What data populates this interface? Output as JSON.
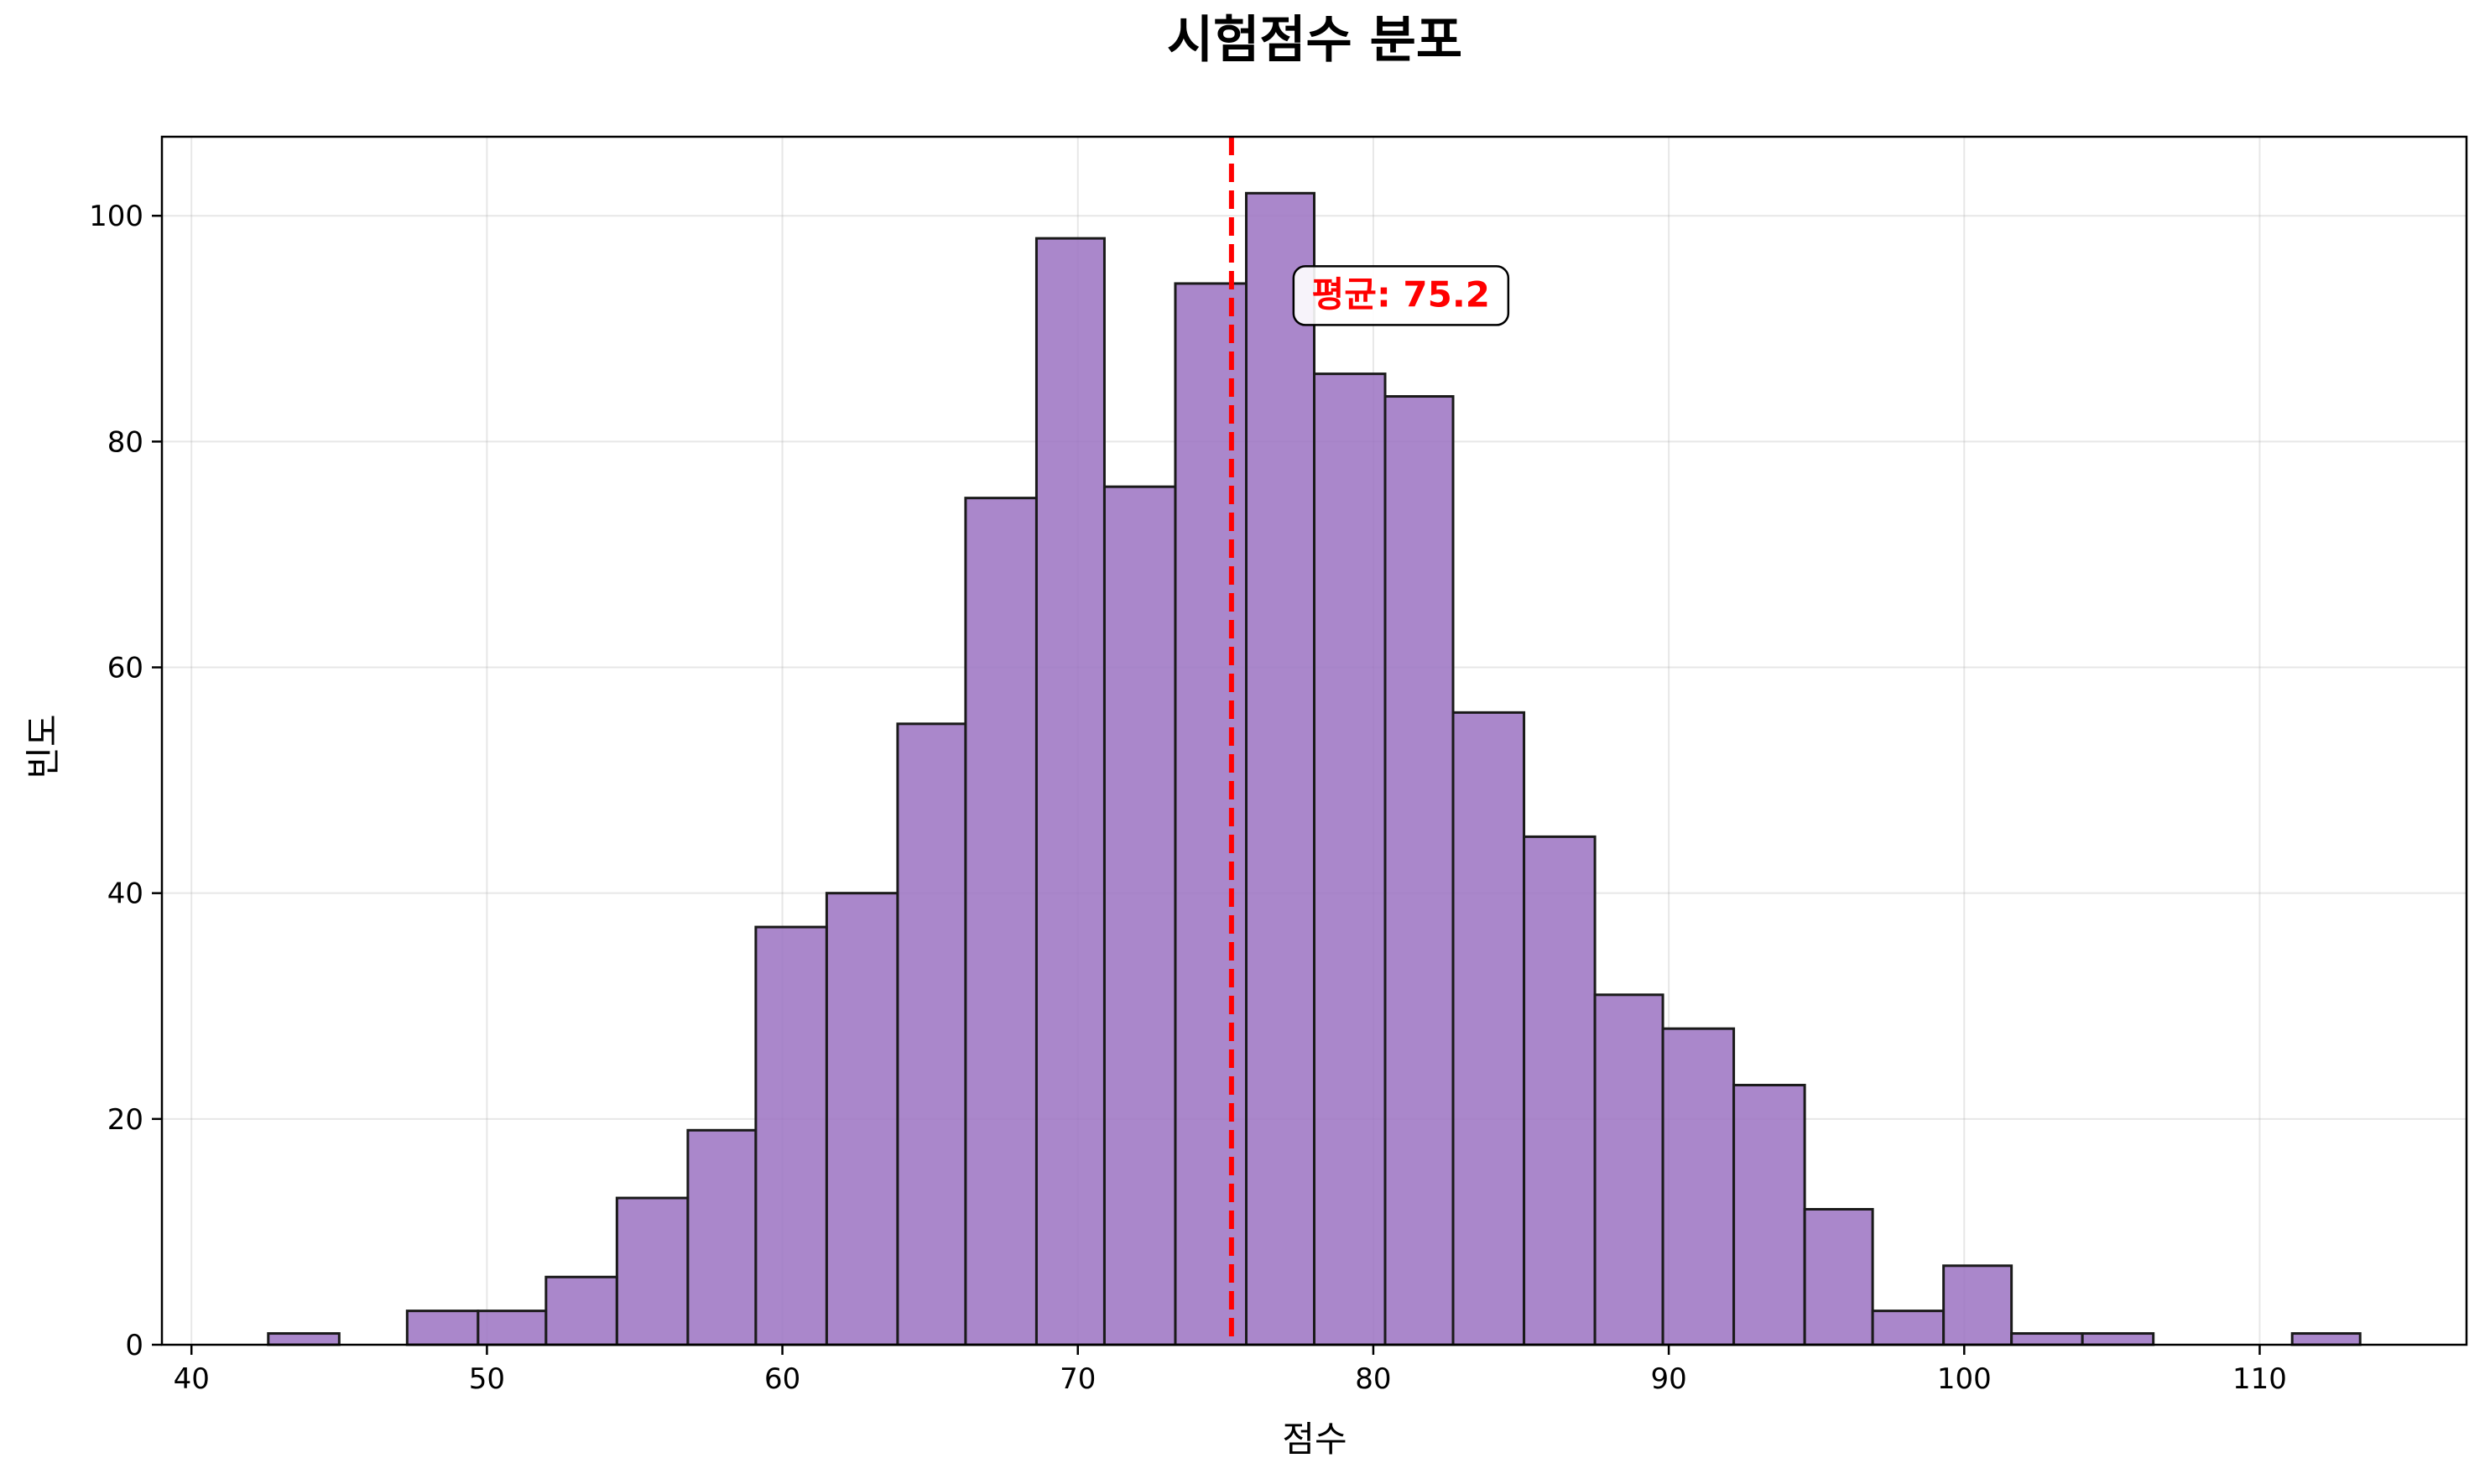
{
  "chart_data": {
    "type": "bar",
    "title": "시험점수 분포",
    "xlabel": "점수",
    "ylabel": "빈도",
    "xlim": [
      39,
      117
    ],
    "ylim": [
      0,
      107
    ],
    "xticks": [
      40,
      50,
      60,
      70,
      80,
      90,
      100,
      110
    ],
    "yticks": [
      0,
      20,
      40,
      60,
      80,
      100
    ],
    "grid": true,
    "bin_edges": [
      42.6,
      45.0,
      47.3,
      49.7,
      52.0,
      54.4,
      56.8,
      59.1,
      61.5,
      63.9,
      66.2,
      68.6,
      70.9,
      73.3,
      75.7,
      78.0,
      80.4,
      82.7,
      85.1,
      87.5,
      89.8,
      92.2,
      94.6,
      96.9,
      99.3,
      101.6,
      104.0,
      106.4,
      108.7,
      111.1,
      113.4
    ],
    "values": [
      1,
      0,
      3,
      3,
      6,
      13,
      19,
      37,
      40,
      55,
      75,
      98,
      76,
      94,
      102,
      86,
      84,
      56,
      45,
      31,
      28,
      23,
      12,
      3,
      7,
      1,
      1,
      0,
      0,
      1
    ],
    "bar_color": "#9b72c2",
    "mean_line": {
      "value": 75.2,
      "color": "#ff0000",
      "style": "dashed"
    },
    "annotation": {
      "text": "평균: 75.2",
      "x": 77.3,
      "y": 93,
      "color": "#ff0000"
    }
  }
}
